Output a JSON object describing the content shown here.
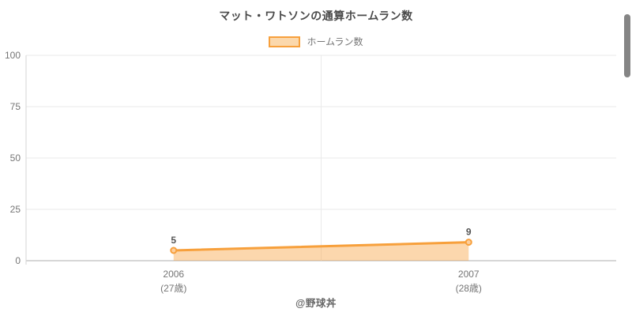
{
  "title": "マット・ワトソンの通算ホームラン数",
  "legend": {
    "items": [
      {
        "label": "ホームラン数",
        "swatch_fill": "#FBD8AC",
        "swatch_border": "#F7A03C"
      }
    ]
  },
  "footer": "@野球丼",
  "chart_data": {
    "type": "area",
    "title": "マット・ワトソンの通算ホームラン数",
    "categories": [
      "2006",
      "2007"
    ],
    "category_sublabels": [
      "(27歳)",
      "(28歳)"
    ],
    "series": [
      {
        "name": "ホームラン数",
        "values": [
          5,
          9
        ]
      }
    ],
    "data_labels": [
      5,
      9
    ],
    "xlabel": "",
    "ylabel": "",
    "ylim": [
      0,
      100
    ],
    "yticks": [
      0,
      25,
      50,
      75,
      100
    ],
    "grid": true,
    "legend_position": "top",
    "colors": {
      "line": "#F7A03C",
      "area": "rgba(247,160,60,0.42)",
      "point_fill": "#FCCE9E",
      "grid": "#eaeaea",
      "axis": "#d6d6d6",
      "tick_text": "#757575",
      "data_label_text": "#545454"
    }
  }
}
